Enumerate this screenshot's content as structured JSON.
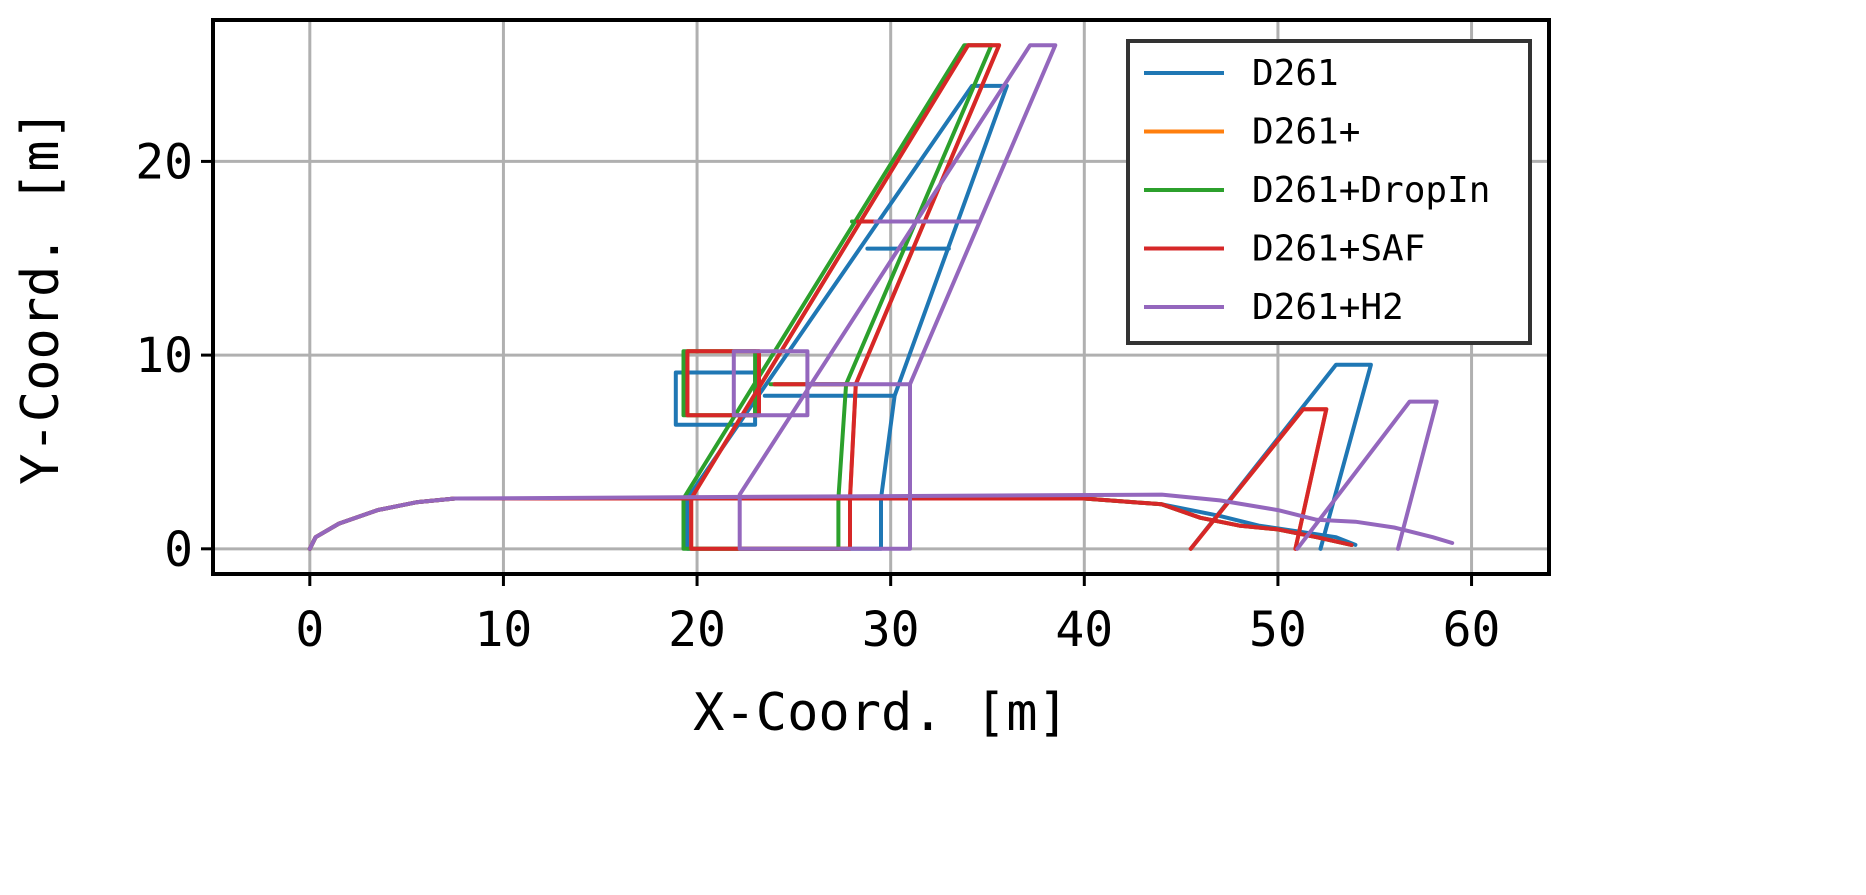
{
  "chart_data": {
    "type": "line",
    "title": "",
    "xlabel": "X-Coord. [m]",
    "ylabel": "Y-Coord. [m]",
    "xlim": [
      -5,
      64
    ],
    "ylim": [
      -1.3,
      27.3
    ],
    "xticks": [
      0,
      10,
      20,
      30,
      40,
      50,
      60
    ],
    "yticks": [
      0,
      10,
      20
    ],
    "grid": true,
    "legend_position": "top-right",
    "series": [
      {
        "name": "D261",
        "color": "#1f77b4",
        "paths": [
          [
            [
              0,
              0
            ],
            [
              0.3,
              0.6
            ],
            [
              1.5,
              1.3
            ],
            [
              3.5,
              2.0
            ],
            [
              5.5,
              2.4
            ],
            [
              7.5,
              2.6
            ],
            [
              40,
              2.6
            ],
            [
              44,
              2.3
            ],
            [
              47,
              1.7
            ],
            [
              49,
              1.2
            ],
            [
              51,
              0.9
            ],
            [
              53,
              0.6
            ],
            [
              54,
              0.2
            ]
          ],
          [
            [
              19.5,
              0
            ],
            [
              19.5,
              2.6
            ],
            [
              34.2,
              23.9
            ],
            [
              36,
              23.9
            ],
            [
              30.2,
              7.9
            ],
            [
              29.5,
              2.6
            ],
            [
              29.5,
              0
            ],
            [
              19.5,
              0
            ]
          ],
          [
            [
              23.5,
              7.9
            ],
            [
              30.2,
              7.9
            ]
          ],
          [
            [
              28.8,
              15.5
            ],
            [
              33.0,
              15.5
            ]
          ],
          [
            [
              18.9,
              6.4
            ],
            [
              23.0,
              6.4
            ],
            [
              23.0,
              9.1
            ],
            [
              18.9,
              9.1
            ],
            [
              18.9,
              6.4
            ]
          ],
          [
            [
              45.5,
              0
            ],
            [
              53.0,
              9.5
            ],
            [
              54.8,
              9.5
            ],
            [
              52.2,
              0
            ]
          ]
        ]
      },
      {
        "name": "D261+",
        "color": "#ff7f0e",
        "paths": [
          [
            [
              0,
              0
            ],
            [
              0.3,
              0.6
            ],
            [
              1.5,
              1.3
            ],
            [
              3.5,
              2.0
            ],
            [
              5.5,
              2.4
            ],
            [
              7.5,
              2.6
            ],
            [
              40,
              2.6
            ],
            [
              44,
              2.3
            ],
            [
              46,
              1.6
            ],
            [
              48,
              1.2
            ],
            [
              50,
              1.0
            ],
            [
              52,
              0.6
            ],
            [
              53.8,
              0.2
            ]
          ],
          [
            [
              19.7,
              0
            ],
            [
              19.7,
              2.6
            ],
            [
              34.0,
              26.0
            ],
            [
              35.6,
              26.0
            ],
            [
              28.2,
              8.5
            ],
            [
              27.9,
              2.6
            ],
            [
              27.9,
              0
            ],
            [
              19.7,
              0
            ]
          ],
          [
            [
              24.0,
              8.5
            ],
            [
              28.2,
              8.5
            ]
          ],
          [
            [
              28.3,
              16.9
            ],
            [
              32.6,
              16.9
            ]
          ],
          [
            [
              19.5,
              6.9
            ],
            [
              23.2,
              6.9
            ],
            [
              23.2,
              10.2
            ],
            [
              19.5,
              10.2
            ],
            [
              19.5,
              6.9
            ]
          ],
          [
            [
              45.5,
              0
            ],
            [
              51.3,
              7.2
            ],
            [
              52.5,
              7.2
            ],
            [
              50.9,
              0
            ]
          ]
        ]
      },
      {
        "name": "D261+DropIn",
        "color": "#2ca02c",
        "paths": [
          [
            [
              0,
              0
            ],
            [
              0.3,
              0.6
            ],
            [
              1.5,
              1.3
            ],
            [
              3.5,
              2.0
            ],
            [
              5.5,
              2.4
            ],
            [
              7.5,
              2.6
            ],
            [
              40,
              2.6
            ],
            [
              44,
              2.3
            ],
            [
              46,
              1.6
            ],
            [
              48,
              1.2
            ],
            [
              50,
              1.0
            ],
            [
              52,
              0.6
            ],
            [
              53.8,
              0.2
            ]
          ],
          [
            [
              19.3,
              0
            ],
            [
              19.3,
              2.6
            ],
            [
              33.8,
              26.0
            ],
            [
              35.2,
              26.0
            ],
            [
              27.7,
              8.5
            ],
            [
              27.3,
              2.6
            ],
            [
              27.3,
              0
            ],
            [
              19.3,
              0
            ]
          ],
          [
            [
              23.8,
              8.5
            ],
            [
              27.7,
              8.5
            ]
          ],
          [
            [
              28.0,
              16.9
            ],
            [
              32.3,
              16.9
            ]
          ],
          [
            [
              19.3,
              6.9
            ],
            [
              23.0,
              6.9
            ],
            [
              23.0,
              10.2
            ],
            [
              19.3,
              10.2
            ],
            [
              19.3,
              6.9
            ]
          ]
        ]
      },
      {
        "name": "D261+SAF",
        "color": "#d62728",
        "paths": [
          [
            [
              0,
              0
            ],
            [
              0.3,
              0.6
            ],
            [
              1.5,
              1.3
            ],
            [
              3.5,
              2.0
            ],
            [
              5.5,
              2.4
            ],
            [
              7.5,
              2.6
            ],
            [
              40,
              2.6
            ],
            [
              44,
              2.3
            ],
            [
              46,
              1.6
            ],
            [
              48,
              1.2
            ],
            [
              50,
              1.0
            ],
            [
              52,
              0.6
            ],
            [
              53.8,
              0.2
            ]
          ],
          [
            [
              19.7,
              0
            ],
            [
              19.7,
              2.6
            ],
            [
              34.0,
              26.0
            ],
            [
              35.6,
              26.0
            ],
            [
              28.2,
              8.5
            ],
            [
              27.9,
              2.6
            ],
            [
              27.9,
              0
            ],
            [
              19.7,
              0
            ]
          ],
          [
            [
              24.0,
              8.5
            ],
            [
              28.2,
              8.5
            ]
          ],
          [
            [
              28.3,
              16.9
            ],
            [
              32.6,
              16.9
            ]
          ],
          [
            [
              19.5,
              6.9
            ],
            [
              23.2,
              6.9
            ],
            [
              23.2,
              10.2
            ],
            [
              19.5,
              10.2
            ],
            [
              19.5,
              6.9
            ]
          ],
          [
            [
              45.5,
              0
            ],
            [
              51.3,
              7.2
            ],
            [
              52.5,
              7.2
            ],
            [
              50.9,
              0
            ]
          ]
        ]
      },
      {
        "name": "D261+H2",
        "color": "#9467bd",
        "paths": [
          [
            [
              0,
              0
            ],
            [
              0.3,
              0.6
            ],
            [
              1.5,
              1.3
            ],
            [
              3.5,
              2.0
            ],
            [
              5.5,
              2.4
            ],
            [
              7.5,
              2.6
            ],
            [
              44,
              2.8
            ],
            [
              47,
              2.5
            ],
            [
              50,
              2.0
            ],
            [
              52,
              1.5
            ],
            [
              54,
              1.4
            ],
            [
              56,
              1.1
            ],
            [
              58,
              0.6
            ],
            [
              59,
              0.3
            ]
          ],
          [
            [
              22.2,
              0
            ],
            [
              22.2,
              2.8
            ],
            [
              37.2,
              26.0
            ],
            [
              38.5,
              26.0
            ],
            [
              31.0,
              8.5
            ],
            [
              31.0,
              0
            ],
            [
              22.2,
              0
            ]
          ],
          [
            [
              25.7,
              8.5
            ],
            [
              31.0,
              8.5
            ]
          ],
          [
            [
              29.2,
              16.9
            ],
            [
              34.5,
              16.9
            ]
          ],
          [
            [
              21.9,
              6.9
            ],
            [
              25.7,
              6.9
            ],
            [
              25.7,
              10.2
            ],
            [
              21.9,
              10.2
            ],
            [
              21.9,
              6.9
            ]
          ],
          [
            [
              51.0,
              0
            ],
            [
              56.8,
              7.6
            ],
            [
              58.2,
              7.6
            ],
            [
              56.2,
              0
            ]
          ]
        ]
      }
    ]
  }
}
